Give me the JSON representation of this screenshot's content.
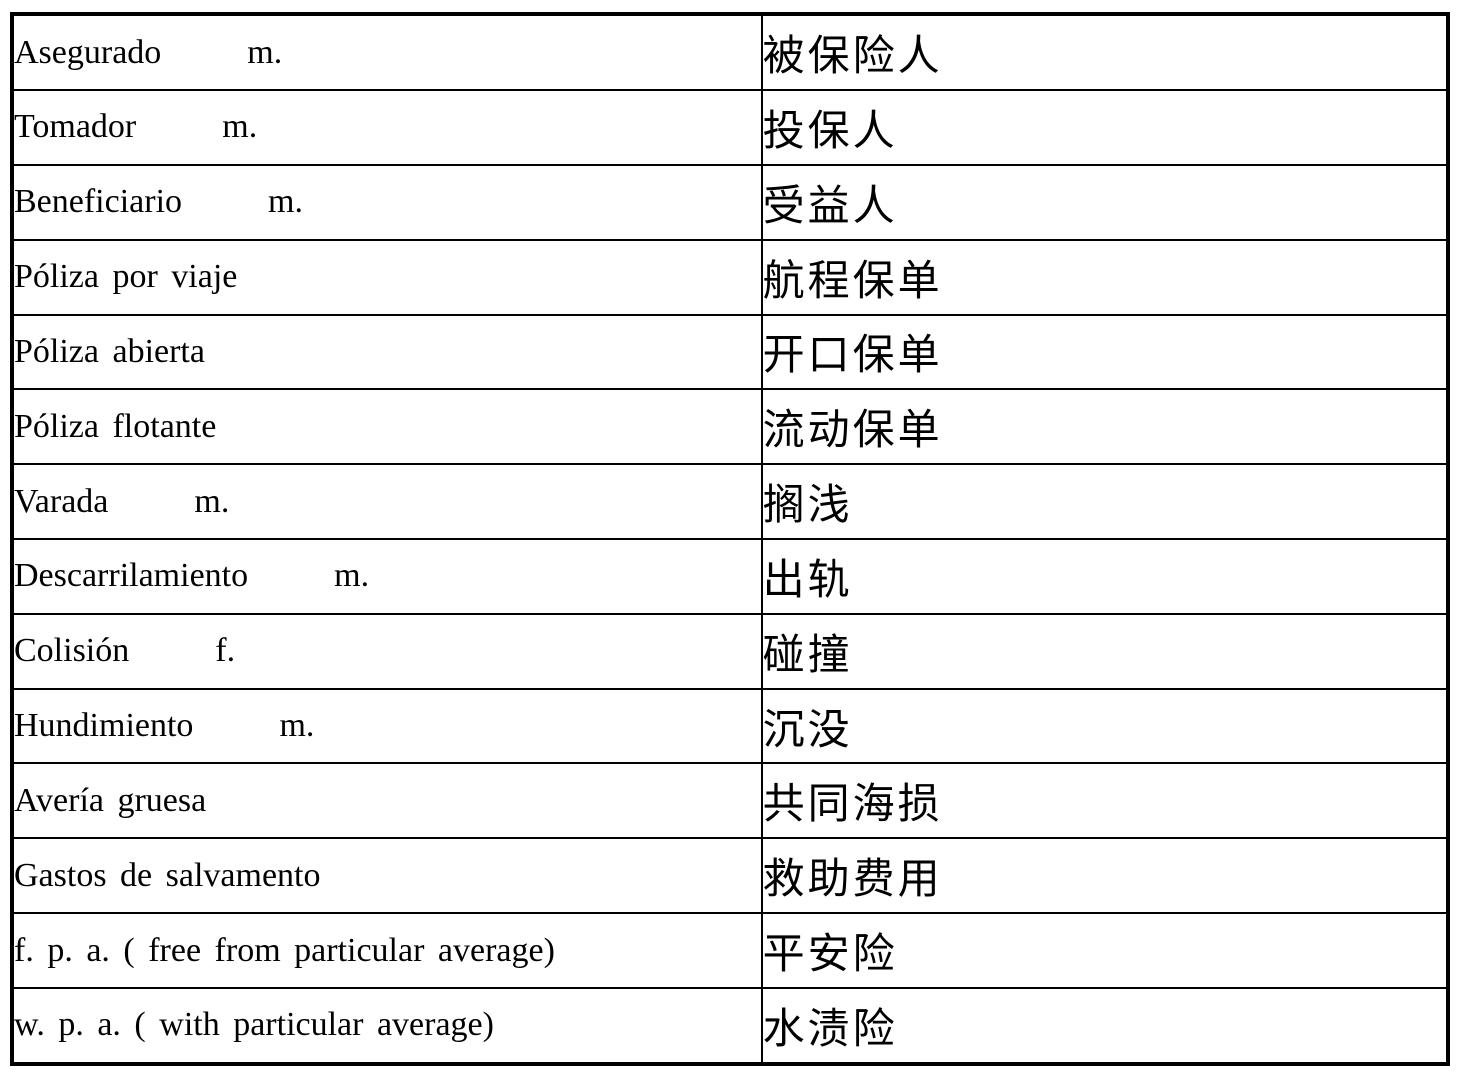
{
  "colors": {
    "border": "#000000",
    "text": "#000000",
    "background": "#ffffff"
  },
  "table": {
    "columns": [
      "spanish-term",
      "chinese-translation"
    ],
    "rows": [
      {
        "es": "Asegurado",
        "gender": "m.",
        "zh": "被保险人"
      },
      {
        "es": "Tomador",
        "gender": "m.",
        "zh": "投保人"
      },
      {
        "es": "Beneficiario",
        "gender": "m.",
        "zh": "受益人"
      },
      {
        "es": "Póliza por viaje",
        "gender": "",
        "zh": "航程保单"
      },
      {
        "es": "Póliza abierta",
        "gender": "",
        "zh": "开口保单"
      },
      {
        "es": "Póliza flotante",
        "gender": "",
        "zh": "流动保单"
      },
      {
        "es": "Varada",
        "gender": "m.",
        "zh": "搁浅"
      },
      {
        "es": "Descarrilamiento",
        "gender": "m.",
        "zh": "出轨"
      },
      {
        "es": "Colisión",
        "gender": "f.",
        "zh": "碰撞"
      },
      {
        "es": "Hundimiento",
        "gender": "m.",
        "zh": "沉没"
      },
      {
        "es": "Avería gruesa",
        "gender": "",
        "zh": "共同海损"
      },
      {
        "es": "Gastos de salvamento",
        "gender": "",
        "zh": "救助费用"
      },
      {
        "es": "f. p. a.  ( free from particular average)",
        "gender": "",
        "zh": "平安险"
      },
      {
        "es": "w. p. a.  ( with particular average)",
        "gender": "",
        "zh": "水渍险"
      }
    ]
  }
}
